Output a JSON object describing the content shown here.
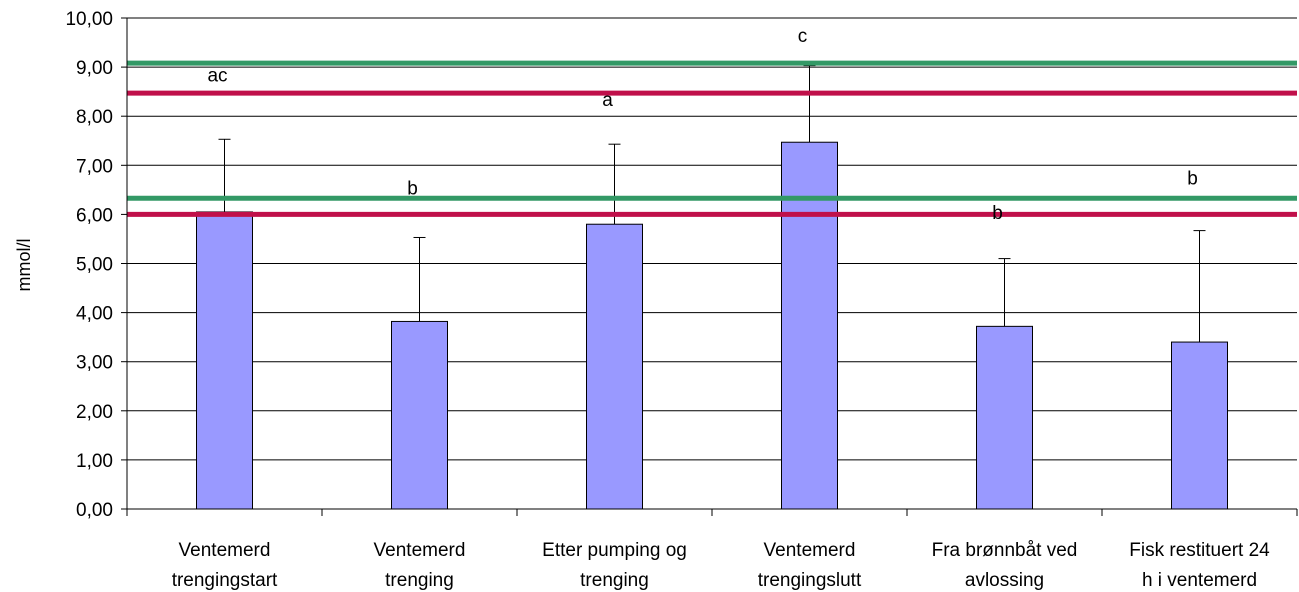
{
  "chart_data": {
    "type": "bar",
    "title": "",
    "xlabel": "",
    "ylabel": "mmol/l",
    "ylim": [
      0,
      10
    ],
    "ytick_step": 1,
    "ytick_labels": [
      "0,00",
      "1,00",
      "2,00",
      "3,00",
      "4,00",
      "5,00",
      "6,00",
      "7,00",
      "8,00",
      "9,00",
      "10,00"
    ],
    "grid": true,
    "legend": "none",
    "categories": [
      [
        "Ventemerd",
        "trengingstart"
      ],
      [
        "Ventemerd",
        "trenging"
      ],
      [
        "Etter pumping og",
        "trenging"
      ],
      [
        "Ventemerd",
        "trengingslutt"
      ],
      [
        "Fra brønnbåt ved",
        "avlossing"
      ],
      [
        "Fisk restituert 24",
        "h i ventemerd"
      ]
    ],
    "values": [
      6.05,
      3.82,
      5.8,
      7.47,
      3.72,
      3.4
    ],
    "error_upper": [
      7.53,
      5.53,
      7.43,
      9.03,
      5.1,
      5.67
    ],
    "bar_color": "#9999ff",
    "reference_lines": [
      {
        "y": 9.08,
        "color": "#339966"
      },
      {
        "y": 8.47,
        "color": "#c0104a"
      },
      {
        "y": 6.33,
        "color": "#339966"
      },
      {
        "y": 6.0,
        "color": "#c0104a"
      }
    ],
    "annotations": [
      {
        "text": "ac",
        "x": 0,
        "y": 8.85
      },
      {
        "text": "b",
        "x": 1,
        "y": 6.55
      },
      {
        "text": "a",
        "x": 2,
        "y": 8.35
      },
      {
        "text": "c",
        "x": 3,
        "y": 9.65
      },
      {
        "text": "b",
        "x": 4,
        "y": 6.05
      },
      {
        "text": "b",
        "x": 5,
        "y": 6.75
      }
    ]
  }
}
